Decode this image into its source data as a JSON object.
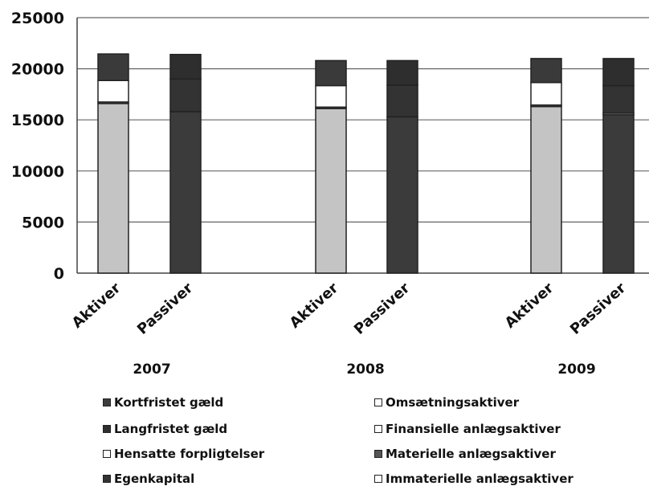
{
  "chart_data": {
    "type": "bar",
    "stacked": true,
    "ylim": [
      0,
      25000
    ],
    "yticks": [
      0,
      5000,
      10000,
      15000,
      20000,
      25000
    ],
    "grid": true,
    "legend_position": "bottom",
    "groups": [
      {
        "year": "2007",
        "bars": [
          {
            "label": "Aktiver",
            "segments": [
              {
                "name": "Immaterielle anlægsaktiver",
                "value": 16600
              },
              {
                "name": "Materielle anlægsaktiver",
                "value": 150
              },
              {
                "name": "Finansielle anlægsaktiver",
                "value": 2100
              },
              {
                "name": "Omsætningsaktiver",
                "value": 2600
              }
            ]
          },
          {
            "label": "Passiver",
            "segments": [
              {
                "name": "Egenkapital",
                "value": 15800
              },
              {
                "name": "Hensatte forpligtelser",
                "value": 0
              },
              {
                "name": "Langfristet gæld",
                "value": 3200
              },
              {
                "name": "Kortfristet gæld",
                "value": 2400
              }
            ]
          }
        ]
      },
      {
        "year": "2008",
        "bars": [
          {
            "label": "Aktiver",
            "segments": [
              {
                "name": "Immaterielle anlægsaktiver",
                "value": 16100
              },
              {
                "name": "Materielle anlægsaktiver",
                "value": 150
              },
              {
                "name": "Finansielle anlægsaktiver",
                "value": 2100
              },
              {
                "name": "Omsætningsaktiver",
                "value": 2450
              }
            ]
          },
          {
            "label": "Passiver",
            "segments": [
              {
                "name": "Egenkapital",
                "value": 15300
              },
              {
                "name": "Hensatte forpligtelser",
                "value": 0
              },
              {
                "name": "Langfristet gæld",
                "value": 3100
              },
              {
                "name": "Kortfristet gæld",
                "value": 2400
              }
            ]
          }
        ]
      },
      {
        "year": "2009",
        "bars": [
          {
            "label": "Aktiver",
            "segments": [
              {
                "name": "Immaterielle anlægsaktiver",
                "value": 16300
              },
              {
                "name": "Materielle anlægsaktiver",
                "value": 150
              },
              {
                "name": "Finansielle anlægsaktiver",
                "value": 2200
              },
              {
                "name": "Omsætningsaktiver",
                "value": 2350
              }
            ]
          },
          {
            "label": "Passiver",
            "segments": [
              {
                "name": "Egenkapital",
                "value": 15500
              },
              {
                "name": "Hensatte forpligtelser",
                "value": 150
              },
              {
                "name": "Langfristet gæld",
                "value": 2700
              },
              {
                "name": "Kortfristet gæld",
                "value": 2650
              }
            ]
          }
        ]
      }
    ],
    "legend": [
      {
        "name": "Kortfristet gæld",
        "color": "#3d3d3d"
      },
      {
        "name": "Omsætningsaktiver",
        "color": "#ffffff"
      },
      {
        "name": "Langfristet gæld",
        "color": "#2f2f2f"
      },
      {
        "name": "Finansielle anlægsaktiver",
        "color": "#ffffff"
      },
      {
        "name": "Hensatte forpligtelser",
        "color": "#ffffff"
      },
      {
        "name": "Materielle anlægsaktiver",
        "color": "#555555"
      },
      {
        "name": "Egenkapital",
        "color": "#333333"
      },
      {
        "name": "Immaterielle anlægsaktiver",
        "color": "#ffffff"
      }
    ],
    "segment_colors": {
      "Immaterielle anlægsaktiver": "#c4c4c4",
      "Materielle anlægsaktiver": "#4a4a4a",
      "Finansielle anlægsaktiver": "#ffffff",
      "Omsætningsaktiver": "#3a3a3a",
      "Egenkapital": "#3b3b3b",
      "Hensatte forpligtelser": "#f2f2f2",
      "Langfristet gæld": "#333333",
      "Kortfristet gæld": "#2e2e2e"
    }
  }
}
